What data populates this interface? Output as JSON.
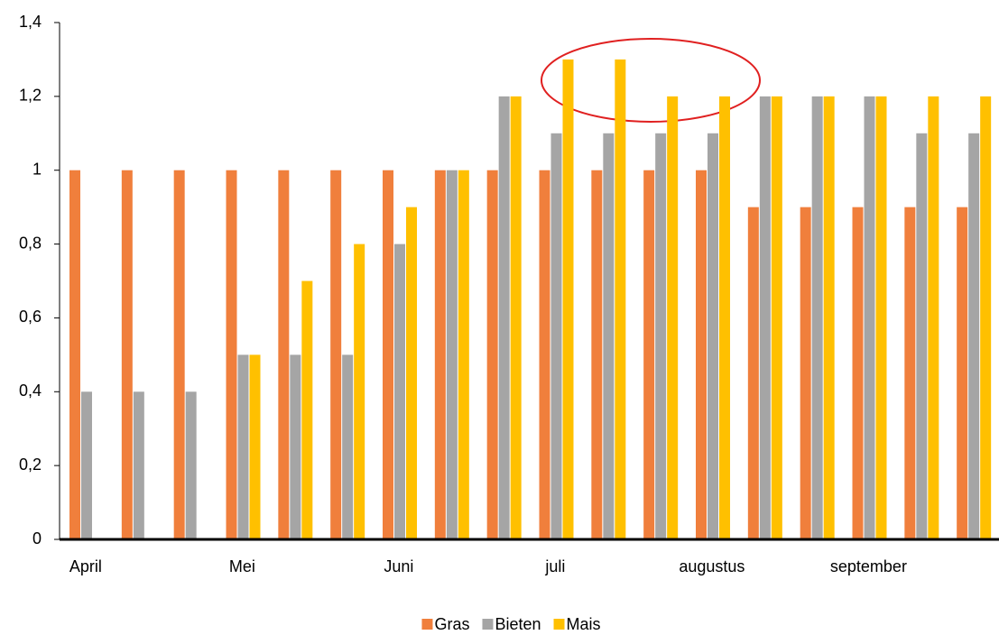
{
  "chart_data": {
    "type": "bar",
    "categories": [
      "April",
      null,
      null,
      "Mei",
      null,
      null,
      "Juni",
      null,
      null,
      "juli",
      null,
      null,
      "augustus",
      null,
      null,
      "september",
      null,
      null
    ],
    "series": [
      {
        "name": "Gras",
        "color": "#f07f3c",
        "values": [
          1,
          1,
          1,
          1,
          1,
          1,
          1,
          1,
          1,
          1,
          1,
          1,
          1,
          0.9,
          0.9,
          0.9,
          0.9,
          0.9
        ]
      },
      {
        "name": "Bieten",
        "color": "#a5a5a5",
        "values": [
          0.4,
          0.4,
          0.4,
          0.5,
          0.5,
          0.5,
          0.8,
          1,
          1.2,
          1.1,
          1.1,
          1.1,
          1.1,
          1.2,
          1.2,
          1.2,
          1.1,
          1.1
        ]
      },
      {
        "name": "Mais",
        "color": "#ffc000",
        "values": [
          null,
          null,
          null,
          0.5,
          0.7,
          0.8,
          0.9,
          1,
          1.2,
          1.3,
          1.3,
          1.2,
          1.2,
          1.2,
          1.2,
          1.2,
          1.2,
          1.2
        ]
      }
    ],
    "ylim": [
      0,
      1.4
    ],
    "yticks": [
      0,
      {
        "value": 0.2,
        "label": "0,2"
      },
      {
        "value": 0.4,
        "label": "0,4"
      },
      {
        "value": 0.6,
        "label": "0,6"
      },
      {
        "value": 0.8,
        "label": "0,8"
      },
      1,
      {
        "value": 1.2,
        "label": "1,2"
      },
      {
        "value": 1.4,
        "label": "1,4"
      }
    ],
    "legend": "bottom"
  }
}
